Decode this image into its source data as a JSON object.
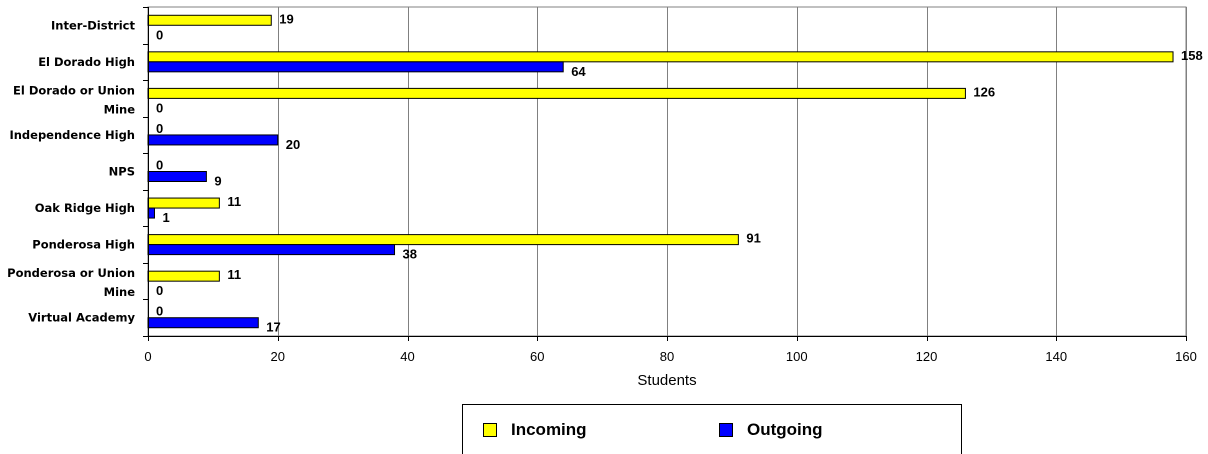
{
  "chart_data": {
    "type": "bar",
    "orientation": "horizontal",
    "categories": [
      "Inter-District",
      "El Dorado High",
      "El Dorado or Union Mine",
      "Independence High",
      "NPS",
      "Oak Ridge High",
      "Ponderosa High",
      "Ponderosa or Union Mine",
      "Virtual Academy"
    ],
    "category_lines": [
      [
        "Inter-District"
      ],
      [
        "El Dorado High"
      ],
      [
        "El Dorado or Union",
        "Mine"
      ],
      [
        "Independence High"
      ],
      [
        "NPS"
      ],
      [
        "Oak Ridge High"
      ],
      [
        "Ponderosa High"
      ],
      [
        "Ponderosa or Union",
        "Mine"
      ],
      [
        "Virtual Academy"
      ]
    ],
    "series": [
      {
        "name": "Incoming",
        "color": "#ffff00",
        "values": [
          19,
          158,
          126,
          0,
          0,
          11,
          91,
          11,
          0
        ]
      },
      {
        "name": "Outgoing",
        "color": "#0000ff",
        "values": [
          0,
          64,
          0,
          20,
          9,
          1,
          38,
          0,
          17
        ]
      }
    ],
    "xlabel": "Students",
    "xlim": [
      0,
      160
    ],
    "xticks": [
      0,
      20,
      40,
      60,
      80,
      100,
      120,
      140,
      160
    ],
    "grid": "vertical",
    "legend_position": "bottom"
  },
  "legend": {
    "incoming_label": "Incoming",
    "outgoing_label": "Outgoing",
    "incoming_color": "#ffff00",
    "outgoing_color": "#0000ff"
  }
}
